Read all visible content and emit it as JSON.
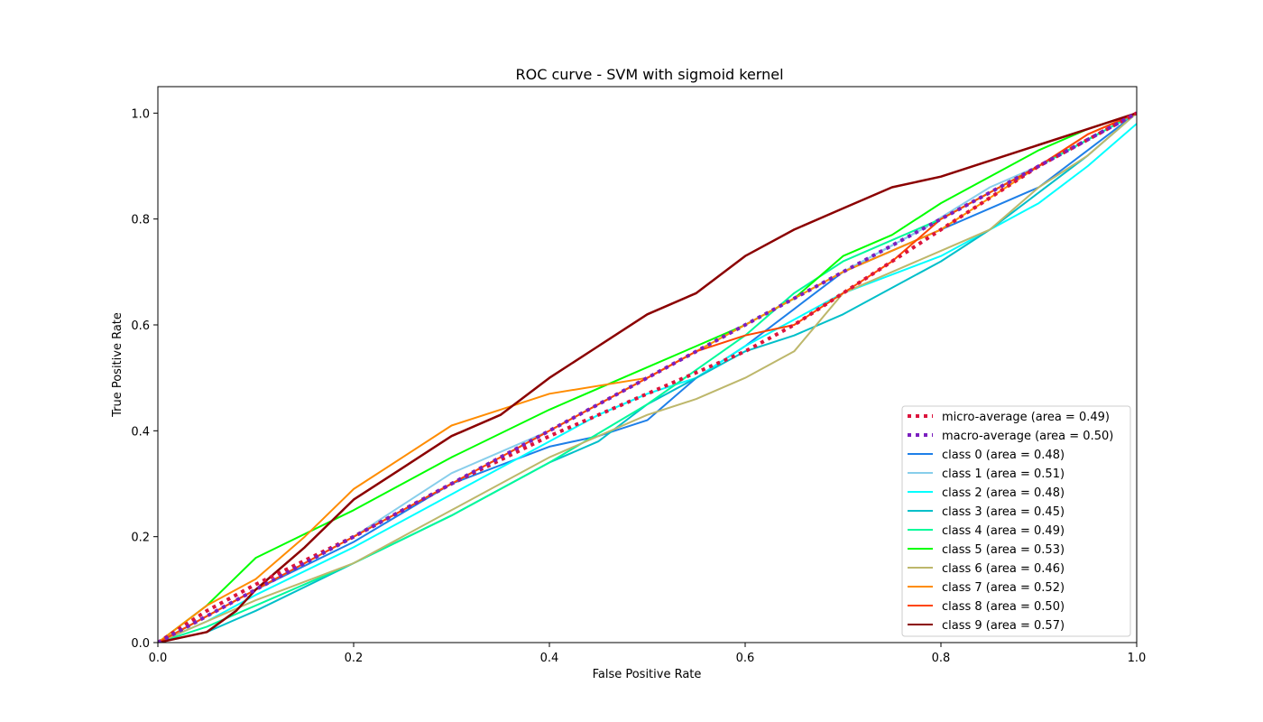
{
  "chart_data": {
    "type": "line",
    "title": "ROC curve - SVM with sigmoid kernel",
    "xlabel": "False Positive Rate",
    "ylabel": "True Positive Rate",
    "xlim": [
      0.0,
      1.0
    ],
    "ylim": [
      0.0,
      1.05
    ],
    "x_ticks": [
      "0.0",
      "0.2",
      "0.4",
      "0.6",
      "0.8",
      "1.0"
    ],
    "y_ticks": [
      "0.0",
      "0.2",
      "0.4",
      "0.6",
      "0.8",
      "1.0"
    ],
    "grid": false,
    "legend_position": "lower right",
    "series": [
      {
        "name": "micro-average (area = 0.49)",
        "color": "#dc143c",
        "style": "dotted",
        "width": 4,
        "points": [
          [
            0,
            0
          ],
          [
            0.05,
            0.06
          ],
          [
            0.1,
            0.11
          ],
          [
            0.2,
            0.2
          ],
          [
            0.3,
            0.3
          ],
          [
            0.4,
            0.39
          ],
          [
            0.5,
            0.47
          ],
          [
            0.6,
            0.55
          ],
          [
            0.65,
            0.6
          ],
          [
            0.7,
            0.66
          ],
          [
            0.75,
            0.72
          ],
          [
            0.8,
            0.78
          ],
          [
            0.85,
            0.84
          ],
          [
            0.9,
            0.9
          ],
          [
            0.95,
            0.95
          ],
          [
            1,
            1
          ]
        ]
      },
      {
        "name": "macro-average (area = 0.50)",
        "color": "#7b1fbf",
        "style": "dotted",
        "width": 4,
        "points": [
          [
            0,
            0
          ],
          [
            0.1,
            0.1
          ],
          [
            0.2,
            0.2
          ],
          [
            0.3,
            0.3
          ],
          [
            0.4,
            0.4
          ],
          [
            0.5,
            0.5
          ],
          [
            0.6,
            0.6
          ],
          [
            0.7,
            0.7
          ],
          [
            0.8,
            0.8
          ],
          [
            0.9,
            0.9
          ],
          [
            1,
            1
          ]
        ]
      },
      {
        "name": "class 0 (area = 0.48)",
        "color": "#1e7fe8",
        "style": "solid",
        "width": 2,
        "points": [
          [
            0,
            0
          ],
          [
            0.05,
            0.05
          ],
          [
            0.1,
            0.1
          ],
          [
            0.2,
            0.19
          ],
          [
            0.3,
            0.3
          ],
          [
            0.4,
            0.37
          ],
          [
            0.45,
            0.39
          ],
          [
            0.5,
            0.42
          ],
          [
            0.55,
            0.5
          ],
          [
            0.6,
            0.56
          ],
          [
            0.65,
            0.63
          ],
          [
            0.7,
            0.7
          ],
          [
            0.8,
            0.78
          ],
          [
            0.85,
            0.82
          ],
          [
            0.9,
            0.86
          ],
          [
            0.95,
            0.93
          ],
          [
            1,
            1
          ]
        ]
      },
      {
        "name": "class 1 (area = 0.51)",
        "color": "#87ceeb",
        "style": "solid",
        "width": 2,
        "points": [
          [
            0,
            0
          ],
          [
            0.05,
            0.05
          ],
          [
            0.1,
            0.1
          ],
          [
            0.2,
            0.2
          ],
          [
            0.3,
            0.32
          ],
          [
            0.4,
            0.4
          ],
          [
            0.5,
            0.5
          ],
          [
            0.6,
            0.6
          ],
          [
            0.7,
            0.7
          ],
          [
            0.78,
            0.78
          ],
          [
            0.85,
            0.86
          ],
          [
            0.9,
            0.9
          ],
          [
            0.95,
            0.95
          ],
          [
            1,
            1
          ]
        ]
      },
      {
        "name": "class 2 (area = 0.48)",
        "color": "#00ffff",
        "style": "solid",
        "width": 2,
        "points": [
          [
            0,
            0
          ],
          [
            0.05,
            0.04
          ],
          [
            0.1,
            0.09
          ],
          [
            0.2,
            0.18
          ],
          [
            0.3,
            0.28
          ],
          [
            0.4,
            0.38
          ],
          [
            0.45,
            0.43
          ],
          [
            0.5,
            0.47
          ],
          [
            0.55,
            0.5
          ],
          [
            0.6,
            0.56
          ],
          [
            0.65,
            0.61
          ],
          [
            0.7,
            0.66
          ],
          [
            0.8,
            0.73
          ],
          [
            0.85,
            0.78
          ],
          [
            0.9,
            0.83
          ],
          [
            0.95,
            0.9
          ],
          [
            1,
            0.98
          ]
        ]
      },
      {
        "name": "class 3 (area = 0.45)",
        "color": "#00bfc9",
        "style": "solid",
        "width": 2,
        "points": [
          [
            0,
            0
          ],
          [
            0.05,
            0.02
          ],
          [
            0.1,
            0.06
          ],
          [
            0.2,
            0.15
          ],
          [
            0.3,
            0.24
          ],
          [
            0.4,
            0.34
          ],
          [
            0.45,
            0.38
          ],
          [
            0.5,
            0.45
          ],
          [
            0.55,
            0.5
          ],
          [
            0.6,
            0.55
          ],
          [
            0.65,
            0.58
          ],
          [
            0.7,
            0.62
          ],
          [
            0.75,
            0.67
          ],
          [
            0.8,
            0.72
          ],
          [
            0.85,
            0.78
          ],
          [
            0.9,
            0.85
          ],
          [
            0.95,
            0.92
          ],
          [
            1,
            1
          ]
        ]
      },
      {
        "name": "class 4 (area = 0.49)",
        "color": "#00fa9a",
        "style": "solid",
        "width": 2,
        "points": [
          [
            0,
            0
          ],
          [
            0.05,
            0.03
          ],
          [
            0.1,
            0.07
          ],
          [
            0.2,
            0.15
          ],
          [
            0.3,
            0.24
          ],
          [
            0.4,
            0.34
          ],
          [
            0.5,
            0.45
          ],
          [
            0.6,
            0.58
          ],
          [
            0.65,
            0.66
          ],
          [
            0.7,
            0.72
          ],
          [
            0.75,
            0.76
          ],
          [
            0.8,
            0.8
          ],
          [
            0.85,
            0.85
          ],
          [
            0.9,
            0.9
          ],
          [
            0.95,
            0.95
          ],
          [
            1,
            1
          ]
        ]
      },
      {
        "name": "class 5 (area = 0.53)",
        "color": "#00ff00",
        "style": "solid",
        "width": 2,
        "points": [
          [
            0,
            0
          ],
          [
            0.05,
            0.07
          ],
          [
            0.1,
            0.16
          ],
          [
            0.2,
            0.25
          ],
          [
            0.3,
            0.35
          ],
          [
            0.4,
            0.44
          ],
          [
            0.5,
            0.52
          ],
          [
            0.55,
            0.56
          ],
          [
            0.6,
            0.6
          ],
          [
            0.65,
            0.65
          ],
          [
            0.7,
            0.73
          ],
          [
            0.75,
            0.77
          ],
          [
            0.8,
            0.83
          ],
          [
            0.85,
            0.88
          ],
          [
            0.9,
            0.93
          ],
          [
            0.95,
            0.97
          ],
          [
            1,
            1
          ]
        ]
      },
      {
        "name": "class 6 (area = 0.46)",
        "color": "#bdb76b",
        "style": "solid",
        "width": 2,
        "points": [
          [
            0,
            0
          ],
          [
            0.05,
            0.04
          ],
          [
            0.1,
            0.08
          ],
          [
            0.2,
            0.15
          ],
          [
            0.3,
            0.25
          ],
          [
            0.4,
            0.35
          ],
          [
            0.5,
            0.43
          ],
          [
            0.55,
            0.46
          ],
          [
            0.6,
            0.5
          ],
          [
            0.65,
            0.55
          ],
          [
            0.7,
            0.66
          ],
          [
            0.8,
            0.74
          ],
          [
            0.85,
            0.78
          ],
          [
            0.9,
            0.86
          ],
          [
            0.95,
            0.92
          ],
          [
            1,
            1
          ]
        ]
      },
      {
        "name": "class 7 (area = 0.52)",
        "color": "#ff8c00",
        "style": "solid",
        "width": 2,
        "points": [
          [
            0,
            0
          ],
          [
            0.05,
            0.07
          ],
          [
            0.1,
            0.12
          ],
          [
            0.15,
            0.2
          ],
          [
            0.2,
            0.29
          ],
          [
            0.25,
            0.35
          ],
          [
            0.3,
            0.41
          ],
          [
            0.35,
            0.44
          ],
          [
            0.4,
            0.47
          ],
          [
            0.5,
            0.5
          ],
          [
            0.6,
            0.6
          ],
          [
            0.7,
            0.7
          ],
          [
            0.8,
            0.78
          ],
          [
            0.85,
            0.84
          ],
          [
            0.9,
            0.9
          ],
          [
            0.95,
            0.96
          ],
          [
            1,
            1
          ]
        ]
      },
      {
        "name": "class 8 (area = 0.50)",
        "color": "#ff4500",
        "style": "solid",
        "width": 2,
        "points": [
          [
            0,
            0
          ],
          [
            0.05,
            0.05
          ],
          [
            0.1,
            0.1
          ],
          [
            0.2,
            0.2
          ],
          [
            0.3,
            0.3
          ],
          [
            0.4,
            0.4
          ],
          [
            0.5,
            0.5
          ],
          [
            0.55,
            0.55
          ],
          [
            0.6,
            0.58
          ],
          [
            0.65,
            0.6
          ],
          [
            0.7,
            0.66
          ],
          [
            0.75,
            0.72
          ],
          [
            0.8,
            0.8
          ],
          [
            0.85,
            0.85
          ],
          [
            0.9,
            0.9
          ],
          [
            0.95,
            0.96
          ],
          [
            1,
            1
          ]
        ]
      },
      {
        "name": "class 9 (area = 0.57)",
        "color": "#8b0000",
        "style": "solid",
        "width": 2.5,
        "points": [
          [
            0,
            0
          ],
          [
            0.05,
            0.02
          ],
          [
            0.08,
            0.06
          ],
          [
            0.1,
            0.1
          ],
          [
            0.15,
            0.18
          ],
          [
            0.2,
            0.27
          ],
          [
            0.25,
            0.33
          ],
          [
            0.3,
            0.39
          ],
          [
            0.35,
            0.43
          ],
          [
            0.4,
            0.5
          ],
          [
            0.45,
            0.56
          ],
          [
            0.5,
            0.62
          ],
          [
            0.55,
            0.66
          ],
          [
            0.6,
            0.73
          ],
          [
            0.65,
            0.78
          ],
          [
            0.7,
            0.82
          ],
          [
            0.75,
            0.86
          ],
          [
            0.8,
            0.88
          ],
          [
            0.85,
            0.91
          ],
          [
            0.9,
            0.94
          ],
          [
            0.95,
            0.97
          ],
          [
            1,
            1
          ]
        ]
      }
    ],
    "reference_line": {
      "color": "#1a1aaa",
      "style": "dashed",
      "points": [
        [
          0,
          0
        ],
        [
          1,
          1
        ]
      ]
    }
  }
}
